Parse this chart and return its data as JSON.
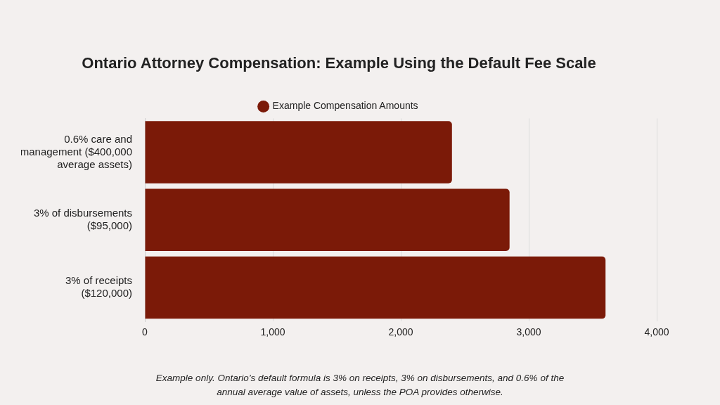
{
  "chart_data": {
    "type": "bar",
    "orientation": "horizontal",
    "title": "Ontario Attorney Compensation: Example Using the Default Fee Scale",
    "categories": [
      "0.6% care and management ($400,000 average assets)",
      "3% of disbursements ($95,000)",
      "3% of receipts ($120,000)"
    ],
    "series": [
      {
        "name": "Example Compensation Amounts",
        "color": "#7b1a08",
        "values": [
          2400,
          2850,
          3600
        ]
      }
    ],
    "xlim": [
      0,
      4000
    ],
    "xticks": [
      {
        "value": 0,
        "label": "0"
      },
      {
        "value": 1000,
        "label": "1,000"
      },
      {
        "value": 2000,
        "label": "2,000"
      },
      {
        "value": 3000,
        "label": "3,000"
      },
      {
        "value": 4000,
        "label": "4,000"
      }
    ],
    "grid": "x",
    "legend": "top",
    "annotations": [
      "Example only. Ontario’s default formula is 3% on receipts, 3% on disbursements, and 0.6% of the annual average value of assets, unless the POA provides otherwise."
    ]
  }
}
